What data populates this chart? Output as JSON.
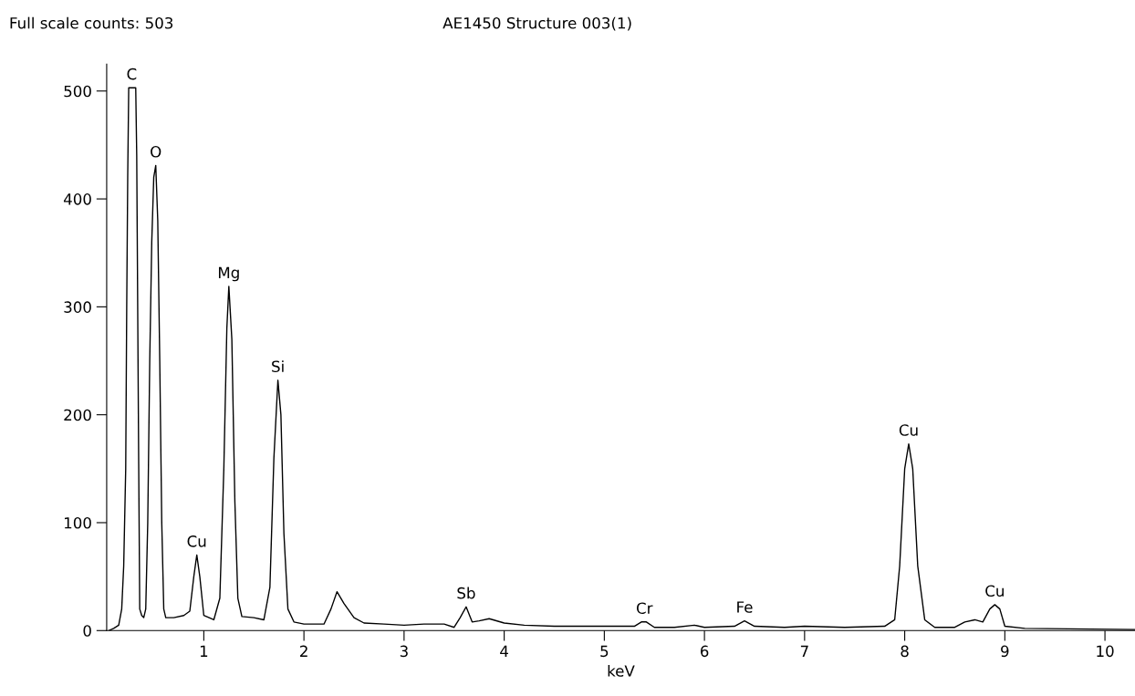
{
  "chart_data": {
    "type": "line",
    "title": "AE1450 Structure 003(1)",
    "xlabel": "keV",
    "color": "#000000",
    "x": [
      0.05,
      0.1,
      0.15,
      0.18,
      0.2,
      0.22,
      0.23,
      0.24,
      0.25,
      0.32,
      0.33,
      0.35,
      0.36,
      0.38,
      0.4,
      0.42,
      0.44,
      0.46,
      0.48,
      0.5,
      0.52,
      0.54,
      0.56,
      0.58,
      0.6,
      0.62,
      0.7,
      0.8,
      0.86,
      0.9,
      0.93,
      0.96,
      1.0,
      1.1,
      1.16,
      1.2,
      1.23,
      1.25,
      1.28,
      1.31,
      1.34,
      1.38,
      1.5,
      1.6,
      1.66,
      1.7,
      1.74,
      1.77,
      1.8,
      1.84,
      1.9,
      2.0,
      2.2,
      2.27,
      2.33,
      2.4,
      2.5,
      2.6,
      2.8,
      3.0,
      3.2,
      3.4,
      3.5,
      3.56,
      3.62,
      3.68,
      3.75,
      3.85,
      4.0,
      4.2,
      4.5,
      4.8,
      5.0,
      5.3,
      5.37,
      5.42,
      5.5,
      5.7,
      5.9,
      6.0,
      6.3,
      6.4,
      6.5,
      6.8,
      7.0,
      7.4,
      7.8,
      7.9,
      7.95,
      8.0,
      8.04,
      8.08,
      8.13,
      8.2,
      8.3,
      8.5,
      8.6,
      8.7,
      8.78,
      8.85,
      8.9,
      8.95,
      9.0,
      9.2,
      10.3
    ],
    "values": [
      0,
      2,
      5,
      20,
      60,
      150,
      300,
      420,
      503,
      503,
      440,
      150,
      20,
      14,
      12,
      20,
      100,
      250,
      360,
      420,
      431,
      380,
      250,
      100,
      20,
      12,
      12,
      14,
      18,
      50,
      70,
      50,
      14,
      10,
      30,
      150,
      280,
      319,
      270,
      120,
      30,
      13,
      12,
      10,
      40,
      160,
      232,
      200,
      90,
      20,
      8,
      6,
      6,
      20,
      36,
      25,
      12,
      7,
      6,
      5,
      6,
      6,
      3,
      12,
      22,
      8,
      9,
      11,
      7,
      5,
      4,
      4,
      4,
      4,
      8,
      8,
      3,
      3,
      5,
      3,
      4,
      9,
      4,
      3,
      4,
      3,
      4,
      10,
      60,
      150,
      173,
      150,
      60,
      10,
      3,
      3,
      8,
      10,
      8,
      20,
      24,
      20,
      4,
      2,
      1
    ],
    "xlim": [
      0.03,
      10.3
    ],
    "xticks": [
      1,
      2,
      3,
      4,
      5,
      6,
      7,
      8,
      9,
      10
    ],
    "ylim": [
      0,
      525
    ],
    "yticks": [
      0,
      100,
      200,
      300,
      400,
      500
    ],
    "grid": false,
    "legend": false,
    "annotations": [
      "Full scale counts: 503",
      {
        "text": "C",
        "x": 0.28,
        "y": 503
      },
      {
        "text": "O",
        "x": 0.52,
        "y": 431
      },
      {
        "text": "Cu",
        "x": 0.93,
        "y": 70
      },
      {
        "text": "Mg",
        "x": 1.25,
        "y": 319
      },
      {
        "text": "Si",
        "x": 1.74,
        "y": 232
      },
      {
        "text": "Sb",
        "x": 3.62,
        "y": 22
      },
      {
        "text": "Cr",
        "x": 5.4,
        "y": 8
      },
      {
        "text": "Fe",
        "x": 6.4,
        "y": 9
      },
      {
        "text": "Cu",
        "x": 8.04,
        "y": 173
      },
      {
        "text": "Cu",
        "x": 8.9,
        "y": 24
      }
    ]
  }
}
